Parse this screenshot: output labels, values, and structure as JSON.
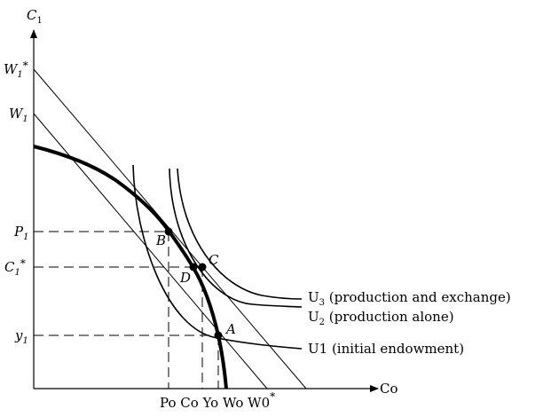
{
  "figure": {
    "y_axis_label": "C",
    "y_axis_label_sub": "1",
    "x_axis_label": "Co",
    "y_ticks": {
      "w1_star": "W",
      "w1_star_sub": "1",
      "w1_star_sup": "*",
      "w1": "W",
      "w1_sub": "1",
      "p1": "P",
      "p1_sub": "1",
      "c1_star": "C",
      "c1_star_sub": "1",
      "c1_star_sup": "*",
      "y1": "y",
      "y1_sub": "1"
    },
    "x_ticks": {
      "row": "Po Co Yo Wo W0",
      "row_sup": "*"
    },
    "points": {
      "a": "A",
      "b": "B",
      "c": "C",
      "d": "D"
    },
    "curves": {
      "u3_name": "U",
      "u3_sub": "3",
      "u3_desc": " (production and exchange)",
      "u2_name": "U",
      "u2_sub": "2",
      "u2_desc": " (production alone)",
      "u1_label": "U1 (initial endowment)"
    }
  }
}
